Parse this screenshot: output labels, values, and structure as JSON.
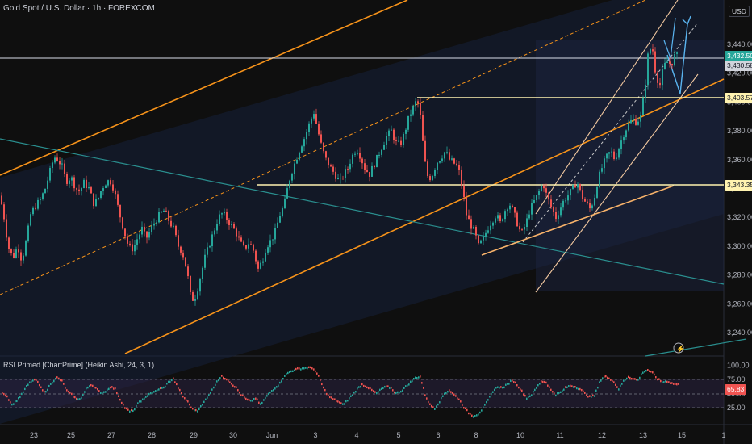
{
  "header": {
    "title": "Gold Spot / U.S. Dollar · 1h · FOREXCOM",
    "currency": "USD"
  },
  "colors": {
    "bg": "#0f0f0f",
    "up": "#26a69a",
    "down": "#ef5350",
    "orange": "#f7931a",
    "yellow_line": "#fff3b0",
    "teal_line": "#2a8f8f",
    "arrow": "#5ab4f0"
  },
  "price_axis": {
    "ticks": [
      "3,440.00",
      "3,420.00",
      "3,400.00",
      "3,380.00",
      "3,360.00",
      "3,340.00",
      "3,320.00",
      "3,300.00",
      "3,280.00",
      "3,260.00",
      "3,240.00"
    ]
  },
  "labels": {
    "current": "3,432.50",
    "second": "3,430.58",
    "level1": "3,403.57",
    "level2": "3,343.35"
  },
  "time_axis": {
    "ticks": [
      "23",
      "25",
      "27",
      "28",
      "29",
      "30",
      "Jun",
      "3",
      "4",
      "5",
      "6",
      "8",
      "10",
      "11",
      "12",
      "13",
      "15",
      "1"
    ]
  },
  "rsi": {
    "title": "RSI Primed [ChartPrime] (Heikin Ashi, 24, 3, 1)",
    "ticks": [
      "100.00",
      "75.00",
      "50.00",
      "25.00"
    ],
    "value": "65.83"
  },
  "chart_data": {
    "type": "candlestick",
    "symbol": "Gold Spot / U.S. Dollar",
    "timeframe": "1h",
    "ylim": [
      3230,
      3460
    ],
    "close_path": [
      [
        0,
        3335
      ],
      [
        5,
        3320
      ],
      [
        10,
        3300
      ],
      [
        16,
        3292
      ],
      [
        22,
        3300
      ],
      [
        27,
        3290
      ],
      [
        33,
        3305
      ],
      [
        38,
        3322
      ],
      [
        44,
        3328
      ],
      [
        50,
        3332
      ],
      [
        56,
        3340
      ],
      [
        62,
        3352
      ],
      [
        67,
        3362
      ],
      [
        72,
        3360
      ],
      [
        77,
        3355
      ],
      [
        82,
        3345
      ],
      [
        88,
        3348
      ],
      [
        94,
        3340
      ],
      [
        99,
        3338
      ],
      [
        104,
        3344
      ],
      [
        110,
        3340
      ],
      [
        116,
        3330
      ],
      [
        121,
        3332
      ],
      [
        126,
        3340
      ],
      [
        131,
        3344
      ],
      [
        136,
        3346
      ],
      [
        141,
        3340
      ],
      [
        147,
        3325
      ],
      [
        153,
        3312
      ],
      [
        159,
        3300
      ],
      [
        165,
        3298
      ],
      [
        170,
        3305
      ],
      [
        176,
        3312
      ],
      [
        181,
        3305
      ],
      [
        187,
        3312
      ],
      [
        193,
        3318
      ],
      [
        198,
        3322
      ],
      [
        204,
        3325
      ],
      [
        209,
        3318
      ],
      [
        215,
        3312
      ],
      [
        221,
        3300
      ],
      [
        226,
        3296
      ],
      [
        232,
        3282
      ],
      [
        237,
        3262
      ],
      [
        243,
        3266
      ],
      [
        248,
        3278
      ],
      [
        254,
        3292
      ],
      [
        260,
        3302
      ],
      [
        266,
        3312
      ],
      [
        271,
        3320
      ],
      [
        276,
        3323
      ],
      [
        282,
        3318
      ],
      [
        287,
        3314
      ],
      [
        292,
        3310
      ],
      [
        298,
        3302
      ],
      [
        303,
        3298
      ],
      [
        309,
        3303
      ],
      [
        314,
        3297
      ],
      [
        320,
        3284
      ],
      [
        325,
        3290
      ],
      [
        330,
        3300
      ],
      [
        336,
        3304
      ],
      [
        341,
        3310
      ],
      [
        347,
        3322
      ],
      [
        352,
        3328
      ],
      [
        358,
        3345
      ],
      [
        363,
        3354
      ],
      [
        368,
        3362
      ],
      [
        373,
        3370
      ],
      [
        378,
        3376
      ],
      [
        384,
        3386
      ],
      [
        389,
        3393
      ],
      [
        394,
        3380
      ],
      [
        399,
        3368
      ],
      [
        404,
        3360
      ],
      [
        410,
        3354
      ],
      [
        415,
        3350
      ],
      [
        421,
        3344
      ],
      [
        426,
        3350
      ],
      [
        431,
        3354
      ],
      [
        436,
        3362
      ],
      [
        442,
        3368
      ],
      [
        447,
        3362
      ],
      [
        452,
        3354
      ],
      [
        458,
        3350
      ],
      [
        463,
        3356
      ],
      [
        468,
        3362
      ],
      [
        474,
        3370
      ],
      [
        479,
        3376
      ],
      [
        485,
        3380
      ],
      [
        490,
        3372
      ],
      [
        496,
        3370
      ],
      [
        501,
        3378
      ],
      [
        507,
        3390
      ],
      [
        512,
        3396
      ],
      [
        517,
        3402
      ],
      [
        521,
        3390
      ],
      [
        526,
        3360
      ],
      [
        531,
        3346
      ],
      [
        536,
        3350
      ],
      [
        541,
        3358
      ],
      [
        547,
        3362
      ],
      [
        552,
        3366
      ],
      [
        557,
        3360
      ],
      [
        562,
        3358
      ],
      [
        568,
        3354
      ],
      [
        573,
        3340
      ],
      [
        578,
        3322
      ],
      [
        583,
        3315
      ],
      [
        588,
        3310
      ],
      [
        593,
        3300
      ],
      [
        599,
        3305
      ],
      [
        604,
        3312
      ],
      [
        610,
        3318
      ],
      [
        615,
        3322
      ],
      [
        620,
        3316
      ],
      [
        625,
        3324
      ],
      [
        631,
        3330
      ],
      [
        636,
        3324
      ],
      [
        641,
        3316
      ],
      [
        646,
        3308
      ],
      [
        652,
        3316
      ],
      [
        657,
        3326
      ],
      [
        663,
        3332
      ],
      [
        668,
        3338
      ],
      [
        673,
        3344
      ],
      [
        678,
        3334
      ],
      [
        684,
        3326
      ],
      [
        689,
        3320
      ],
      [
        694,
        3326
      ],
      [
        699,
        3332
      ],
      [
        705,
        3336
      ],
      [
        710,
        3340
      ],
      [
        715,
        3345
      ],
      [
        720,
        3336
      ],
      [
        726,
        3330
      ],
      [
        731,
        3326
      ],
      [
        736,
        3332
      ],
      [
        741,
        3346
      ],
      [
        747,
        3356
      ],
      [
        752,
        3362
      ],
      [
        757,
        3366
      ],
      [
        762,
        3360
      ],
      [
        768,
        3370
      ],
      [
        773,
        3378
      ],
      [
        778,
        3384
      ],
      [
        784,
        3388
      ],
      [
        789,
        3386
      ],
      [
        794,
        3390
      ],
      [
        799,
        3408
      ],
      [
        803,
        3432
      ],
      [
        808,
        3440
      ],
      [
        813,
        3418
      ],
      [
        818,
        3412
      ],
      [
        822,
        3424
      ],
      [
        827,
        3428
      ],
      [
        832,
        3426
      ],
      [
        836,
        3432
      ],
      [
        841,
        3432
      ]
    ],
    "horizontal_levels": [
      {
        "price": 3403.57,
        "label": "3,403.57"
      },
      {
        "price": 3343.35,
        "label": "3,343.35"
      },
      {
        "price": 3432.5,
        "label": "3,432.50"
      }
    ],
    "rsi_series_name": "RSI Primed",
    "rsi_params": "Heikin Ashi, 24, 3, 1",
    "rsi_levels": [
      75,
      50,
      25
    ],
    "rsi_last": 65.83,
    "rsi_path": [
      [
        0,
        55
      ],
      [
        8,
        45
      ],
      [
        14,
        30
      ],
      [
        20,
        38
      ],
      [
        26,
        48
      ],
      [
        32,
        62
      ],
      [
        38,
        72
      ],
      [
        44,
        74
      ],
      [
        50,
        60
      ],
      [
        56,
        52
      ],
      [
        62,
        68
      ],
      [
        70,
        78
      ],
      [
        76,
        72
      ],
      [
        82,
        55
      ],
      [
        88,
        48
      ],
      [
        94,
        40
      ],
      [
        100,
        42
      ],
      [
        106,
        58
      ],
      [
        112,
        66
      ],
      [
        118,
        60
      ],
      [
        124,
        50
      ],
      [
        130,
        54
      ],
      [
        136,
        62
      ],
      [
        142,
        58
      ],
      [
        148,
        40
      ],
      [
        154,
        25
      ],
      [
        160,
        18
      ],
      [
        166,
        22
      ],
      [
        172,
        36
      ],
      [
        178,
        40
      ],
      [
        184,
        50
      ],
      [
        190,
        52
      ],
      [
        196,
        58
      ],
      [
        202,
        60
      ],
      [
        208,
        70
      ],
      [
        214,
        76
      ],
      [
        220,
        60
      ],
      [
        226,
        45
      ],
      [
        232,
        35
      ],
      [
        238,
        22
      ],
      [
        244,
        20
      ],
      [
        250,
        30
      ],
      [
        256,
        44
      ],
      [
        262,
        56
      ],
      [
        268,
        72
      ],
      [
        274,
        80
      ],
      [
        280,
        76
      ],
      [
        286,
        68
      ],
      [
        292,
        60
      ],
      [
        298,
        48
      ],
      [
        304,
        40
      ],
      [
        310,
        36
      ],
      [
        316,
        42
      ],
      [
        322,
        30
      ],
      [
        328,
        42
      ],
      [
        334,
        52
      ],
      [
        340,
        60
      ],
      [
        346,
        68
      ],
      [
        352,
        82
      ],
      [
        358,
        88
      ],
      [
        364,
        92
      ],
      [
        370,
        94
      ],
      [
        376,
        95
      ],
      [
        382,
        96
      ],
      [
        388,
        94
      ],
      [
        394,
        80
      ],
      [
        400,
        60
      ],
      [
        406,
        46
      ],
      [
        412,
        40
      ],
      [
        418,
        36
      ],
      [
        424,
        30
      ],
      [
        430,
        38
      ],
      [
        436,
        48
      ],
      [
        442,
        58
      ],
      [
        448,
        66
      ],
      [
        454,
        62
      ],
      [
        460,
        56
      ],
      [
        466,
        50
      ],
      [
        472,
        58
      ],
      [
        478,
        62
      ],
      [
        484,
        60
      ],
      [
        490,
        50
      ],
      [
        496,
        54
      ],
      [
        502,
        62
      ],
      [
        508,
        70
      ],
      [
        514,
        78
      ],
      [
        520,
        80
      ],
      [
        526,
        48
      ],
      [
        532,
        30
      ],
      [
        538,
        24
      ],
      [
        544,
        36
      ],
      [
        550,
        50
      ],
      [
        556,
        56
      ],
      [
        562,
        48
      ],
      [
        568,
        40
      ],
      [
        574,
        26
      ],
      [
        580,
        16
      ],
      [
        586,
        10
      ],
      [
        592,
        14
      ],
      [
        598,
        24
      ],
      [
        604,
        38
      ],
      [
        610,
        54
      ],
      [
        616,
        62
      ],
      [
        622,
        60
      ],
      [
        628,
        66
      ],
      [
        634,
        74
      ],
      [
        640,
        66
      ],
      [
        646,
        54
      ],
      [
        652,
        42
      ],
      [
        658,
        48
      ],
      [
        664,
        60
      ],
      [
        670,
        72
      ],
      [
        676,
        70
      ],
      [
        682,
        56
      ],
      [
        688,
        48
      ],
      [
        694,
        52
      ],
      [
        700,
        60
      ],
      [
        706,
        64
      ],
      [
        712,
        62
      ],
      [
        718,
        58
      ],
      [
        724,
        50
      ],
      [
        730,
        44
      ],
      [
        736,
        46
      ],
      [
        742,
        70
      ],
      [
        748,
        80
      ],
      [
        754,
        78
      ],
      [
        760,
        70
      ],
      [
        766,
        58
      ],
      [
        772,
        72
      ],
      [
        778,
        80
      ],
      [
        784,
        76
      ],
      [
        790,
        74
      ],
      [
        796,
        88
      ],
      [
        802,
        92
      ],
      [
        808,
        86
      ],
      [
        814,
        76
      ],
      [
        820,
        70
      ],
      [
        826,
        72
      ],
      [
        832,
        68
      ],
      [
        838,
        66
      ],
      [
        842,
        66
      ]
    ]
  }
}
